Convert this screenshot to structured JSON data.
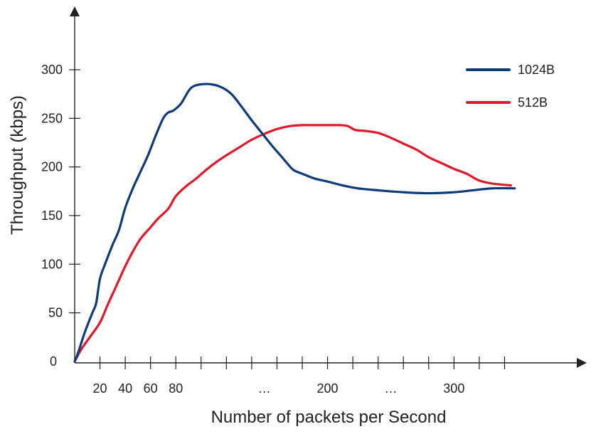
{
  "chart_data": {
    "type": "line",
    "xlabel": "Number of packets per Second",
    "ylabel": "Throughput (kbps)",
    "xlim": [
      0,
      360
    ],
    "ylim": [
      0,
      320
    ],
    "x_tick_labels": [
      {
        "x": 20,
        "label": "20"
      },
      {
        "x": 40,
        "label": "40"
      },
      {
        "x": 60,
        "label": "60"
      },
      {
        "x": 80,
        "label": "80"
      },
      {
        "x": 150,
        "label": "..."
      },
      {
        "x": 200,
        "label": "200"
      },
      {
        "x": 250,
        "label": "..."
      },
      {
        "x": 300,
        "label": "300"
      }
    ],
    "x_tick_marks": [
      20,
      40,
      60,
      80,
      100,
      120,
      140,
      160,
      180,
      200,
      220,
      240,
      260,
      280,
      300,
      320,
      340
    ],
    "y_ticks": [
      0,
      50,
      100,
      150,
      200,
      250,
      300
    ],
    "legend_position": "top-right",
    "grid": false,
    "series": [
      {
        "name": "1024B",
        "color": "#0d3b7a",
        "points": [
          [
            0,
            0
          ],
          [
            3,
            10
          ],
          [
            8,
            30
          ],
          [
            14,
            50
          ],
          [
            17,
            60
          ],
          [
            20,
            85
          ],
          [
            24,
            100
          ],
          [
            30,
            120
          ],
          [
            35,
            135
          ],
          [
            40,
            158
          ],
          [
            46,
            178
          ],
          [
            52,
            195
          ],
          [
            58,
            212
          ],
          [
            64,
            232
          ],
          [
            70,
            250
          ],
          [
            74,
            256
          ],
          [
            78,
            258
          ],
          [
            84,
            265
          ],
          [
            90,
            278
          ],
          [
            94,
            283
          ],
          [
            100,
            285
          ],
          [
            108,
            285
          ],
          [
            116,
            282
          ],
          [
            124,
            275
          ],
          [
            132,
            262
          ],
          [
            140,
            248
          ],
          [
            148,
            235
          ],
          [
            156,
            222
          ],
          [
            164,
            210
          ],
          [
            172,
            198
          ],
          [
            176,
            195
          ],
          [
            180,
            193
          ],
          [
            190,
            188
          ],
          [
            200,
            185
          ],
          [
            212,
            181
          ],
          [
            224,
            178
          ],
          [
            240,
            176
          ],
          [
            260,
            174
          ],
          [
            280,
            173
          ],
          [
            300,
            174
          ],
          [
            315,
            176
          ],
          [
            330,
            178
          ],
          [
            348,
            178
          ]
        ]
      },
      {
        "name": "512B",
        "color": "#e2172a",
        "points": [
          [
            0,
            0
          ],
          [
            5,
            12
          ],
          [
            12,
            25
          ],
          [
            20,
            40
          ],
          [
            26,
            58
          ],
          [
            32,
            75
          ],
          [
            40,
            98
          ],
          [
            46,
            113
          ],
          [
            52,
            126
          ],
          [
            60,
            138
          ],
          [
            66,
            147
          ],
          [
            74,
            157
          ],
          [
            80,
            170
          ],
          [
            88,
            180
          ],
          [
            96,
            188
          ],
          [
            104,
            197
          ],
          [
            112,
            205
          ],
          [
            120,
            212
          ],
          [
            130,
            220
          ],
          [
            140,
            228
          ],
          [
            150,
            234
          ],
          [
            160,
            239
          ],
          [
            170,
            242
          ],
          [
            180,
            243
          ],
          [
            190,
            243
          ],
          [
            200,
            243
          ],
          [
            210,
            243
          ],
          [
            216,
            242
          ],
          [
            222,
            238
          ],
          [
            230,
            237
          ],
          [
            240,
            235
          ],
          [
            250,
            230
          ],
          [
            260,
            224
          ],
          [
            270,
            218
          ],
          [
            280,
            210
          ],
          [
            290,
            204
          ],
          [
            300,
            198
          ],
          [
            310,
            193
          ],
          [
            320,
            186
          ],
          [
            330,
            183
          ],
          [
            345,
            181
          ]
        ]
      }
    ]
  }
}
